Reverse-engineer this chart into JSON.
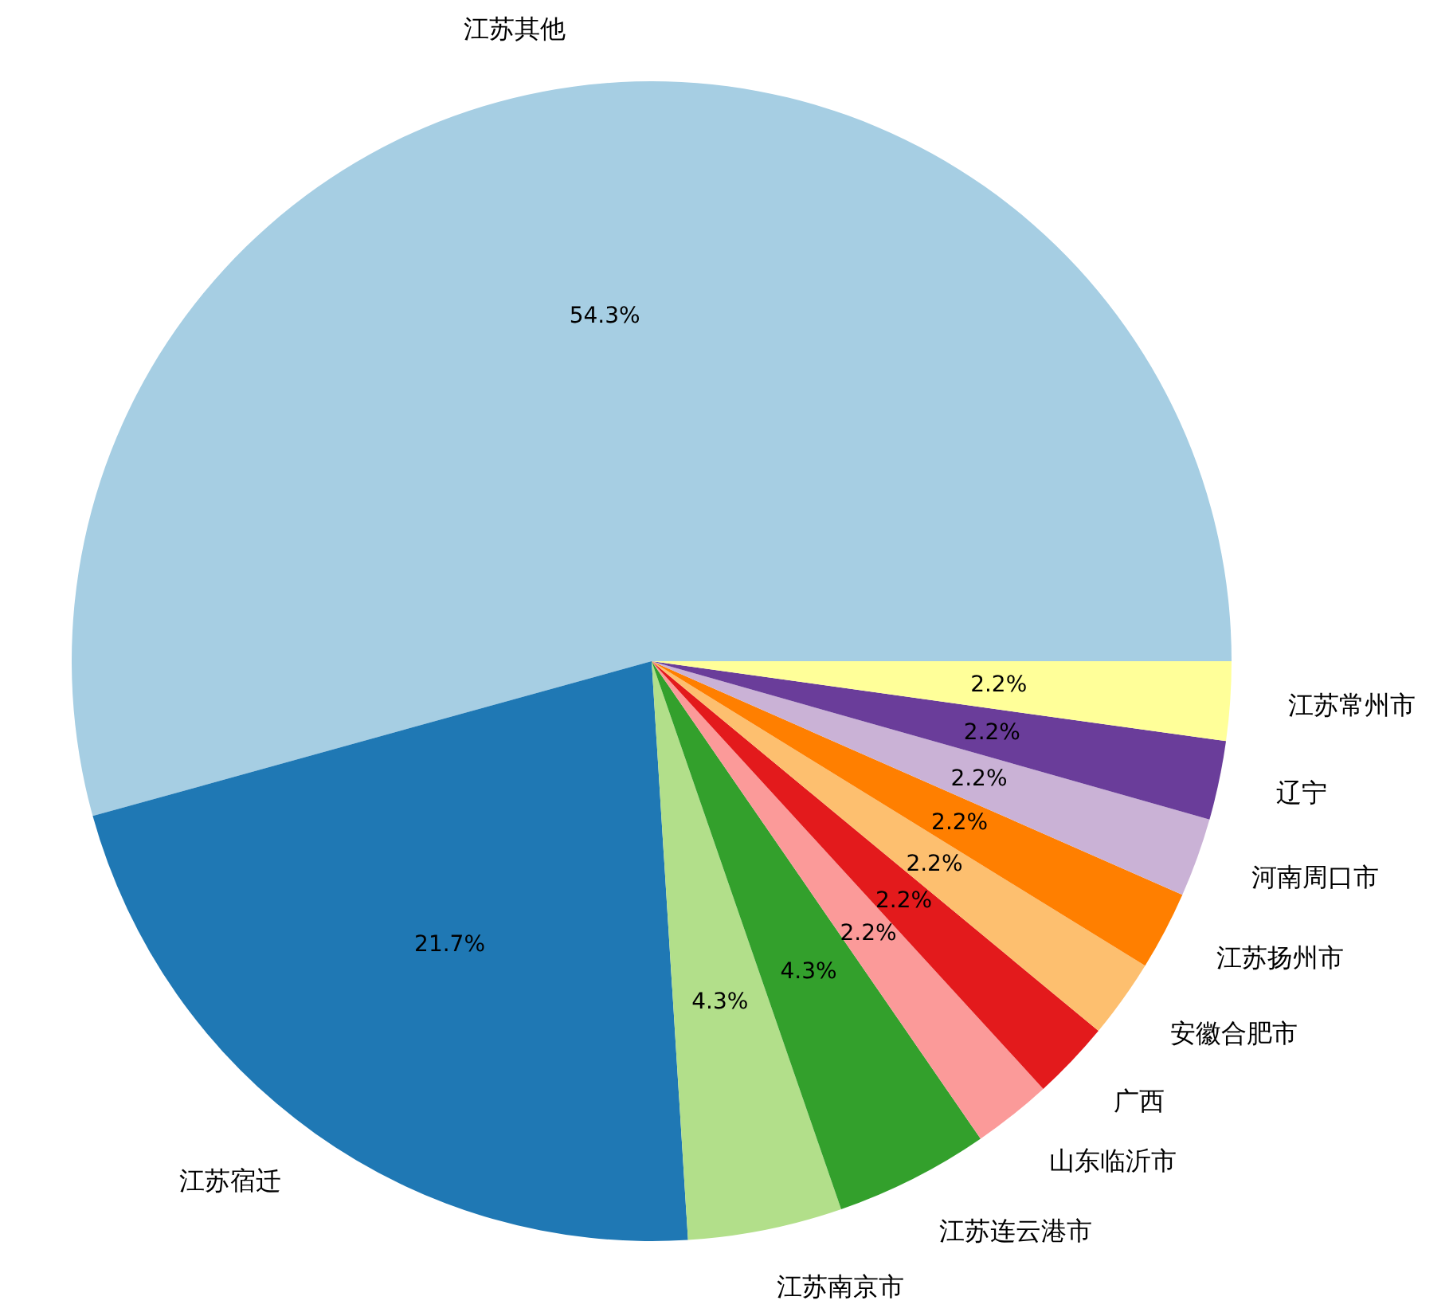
{
  "chart_data": {
    "type": "pie",
    "categories": [
      "江苏其他",
      "江苏宿迁",
      "江苏南京市",
      "江苏连云港市",
      "山东临沂市",
      "广西",
      "安徽合肥市",
      "江苏扬州市",
      "河南周口市",
      "辽宁",
      "江苏常州市"
    ],
    "values": [
      54.3,
      21.7,
      4.3,
      4.3,
      2.2,
      2.2,
      2.2,
      2.2,
      2.2,
      2.2,
      2.2
    ],
    "value_labels": [
      "54.3%",
      "21.7%",
      "4.3%",
      "4.3%",
      "2.2%",
      "2.2%",
      "2.2%",
      "2.2%",
      "2.2%",
      "2.2%",
      "2.2%"
    ],
    "colors": [
      "#a6cee3",
      "#1f78b4",
      "#b2df8a",
      "#33a02c",
      "#fb9a99",
      "#e31a1c",
      "#fdbf6f",
      "#ff7f00",
      "#cab2d6",
      "#6a3d9a",
      "#ffff99"
    ],
    "legend": false
  }
}
